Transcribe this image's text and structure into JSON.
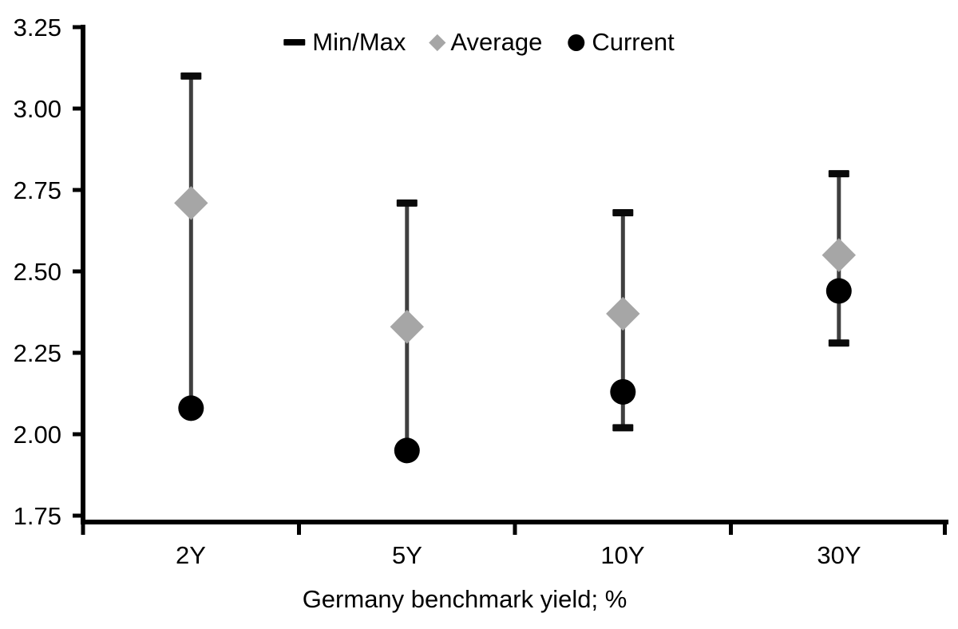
{
  "chart_data": {
    "type": "scatter",
    "subtype": "min-max-range-with-markers",
    "categories": [
      "2Y",
      "5Y",
      "10Y",
      "30Y"
    ],
    "series": [
      {
        "name": "Min/Max",
        "marker": "dash",
        "min": [
          2.08,
          1.95,
          2.02,
          2.28
        ],
        "max": [
          3.1,
          2.71,
          2.68,
          2.8
        ]
      },
      {
        "name": "Average",
        "marker": "diamond",
        "values": [
          2.71,
          2.33,
          2.37,
          2.55
        ]
      },
      {
        "name": "Current",
        "marker": "circle",
        "values": [
          2.08,
          1.95,
          2.13,
          2.44
        ]
      }
    ],
    "title": "",
    "xlabel": "Germany benchmark yield; %",
    "ylabel": "",
    "ylim": [
      1.75,
      3.25
    ],
    "ytick_step": 0.25,
    "ytick_labels": [
      "3.25",
      "3.00",
      "2.75",
      "2.50",
      "2.25",
      "2.00",
      "1.75"
    ],
    "grid": false,
    "legend_position": "top-center",
    "colors": {
      "range_line": "#3f3f3f",
      "cap": "#0a0a0a",
      "average_marker": "#a6a6a6",
      "current_marker": "#000000",
      "axis": "#000000",
      "text": "#000000",
      "background": "#ffffff"
    }
  }
}
